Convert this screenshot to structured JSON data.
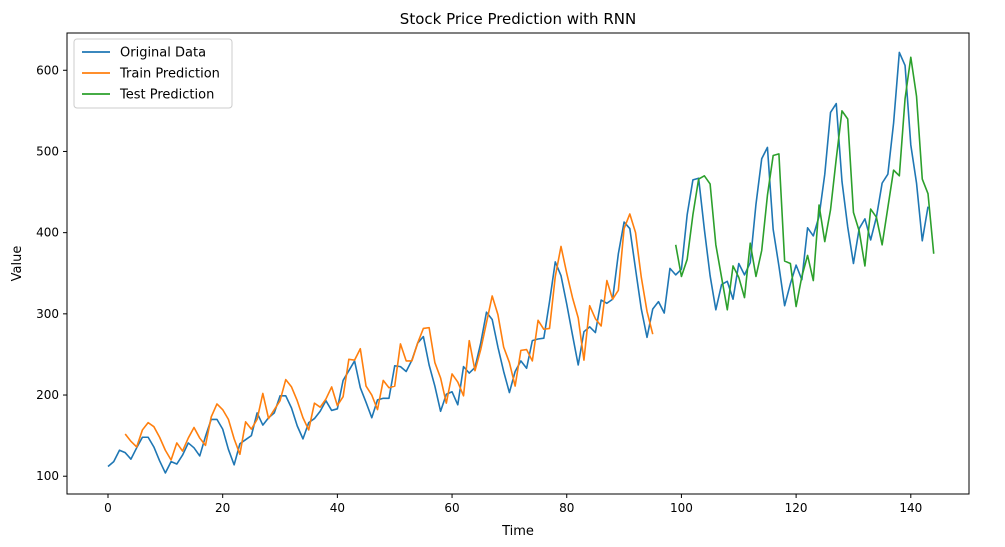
{
  "chart_data": {
    "type": "line",
    "title": "Stock Price Prediction with RNN",
    "xlabel": "Time",
    "ylabel": "Value",
    "xlim": [
      -7.15,
      150.15
    ],
    "ylim": [
      78.1,
      645.9
    ],
    "xticks": [
      0,
      20,
      40,
      60,
      80,
      100,
      120,
      140
    ],
    "yticks": [
      100,
      200,
      300,
      400,
      500,
      600
    ],
    "grid": false,
    "legend_position": "top-left",
    "series": [
      {
        "name": "Original Data",
        "color": "#1f77b4",
        "x_start": 0,
        "values": [
          112,
          118,
          132,
          129,
          121,
          135,
          148,
          148,
          136,
          119,
          104,
          118,
          115,
          126,
          141,
          135,
          125,
          149,
          170,
          170,
          158,
          133,
          114,
          140,
          145,
          150,
          178,
          163,
          172,
          178,
          199,
          199,
          184,
          162,
          146,
          166,
          171,
          180,
          193,
          181,
          183,
          218,
          230,
          242,
          209,
          191,
          172,
          194,
          196,
          196,
          236,
          235,
          229,
          243,
          264,
          272,
          237,
          211,
          180,
          201,
          204,
          188,
          235,
          227,
          234,
          264,
          302,
          293,
          259,
          229,
          203,
          229,
          242,
          233,
          267,
          269,
          270,
          315,
          364,
          347,
          312,
          274,
          237,
          278,
          284,
          277,
          317,
          313,
          318,
          374,
          413,
          405,
          355,
          306,
          271,
          306,
          315,
          301,
          356,
          348,
          355,
          422,
          465,
          467,
          404,
          347,
          305,
          336,
          340,
          318,
          362,
          348,
          363,
          435,
          491,
          505,
          404,
          359,
          310,
          337,
          360,
          342,
          406,
          396,
          420,
          472,
          548,
          559,
          463,
          407,
          362,
          405,
          417,
          391,
          419,
          461,
          472,
          535,
          622,
          606,
          508,
          461,
          390,
          432
        ]
      },
      {
        "name": "Train Prediction",
        "color": "#ff7f0e",
        "x_start": 3,
        "values": [
          152,
          143,
          136,
          157,
          166,
          161,
          148,
          132,
          120,
          141,
          131,
          147,
          160,
          147,
          138,
          173,
          189,
          182,
          170,
          146,
          127,
          167,
          158,
          170,
          202,
          171,
          182,
          193,
          219,
          210,
          193,
          172,
          157,
          190,
          185,
          195,
          210,
          187,
          198,
          244,
          243,
          257,
          211,
          200,
          182,
          218,
          209,
          211,
          263,
          242,
          242,
          264,
          282,
          283,
          240,
          221,
          190,
          226,
          216,
          199,
          267,
          230,
          256,
          289,
          322,
          299,
          259,
          240,
          211,
          255,
          256,
          242,
          292,
          281,
          282,
          346,
          383,
          350,
          320,
          295,
          243,
          310,
          294,
          285,
          341,
          318,
          329,
          405,
          423,
          400,
          345,
          303,
          275
        ]
      },
      {
        "name": "Test Prediction",
        "color": "#2ca02c",
        "x_start": 99,
        "values": [
          385,
          346,
          367,
          422,
          466,
          470,
          460,
          385,
          345,
          305,
          359,
          345,
          320,
          387,
          346,
          378,
          446,
          495,
          497,
          365,
          362,
          309,
          346,
          372,
          341,
          434,
          389,
          428,
          491,
          550,
          540,
          425,
          402,
          359,
          429,
          419,
          385,
          431,
          477,
          470,
          565,
          616,
          568,
          466,
          448,
          374
        ]
      }
    ]
  }
}
